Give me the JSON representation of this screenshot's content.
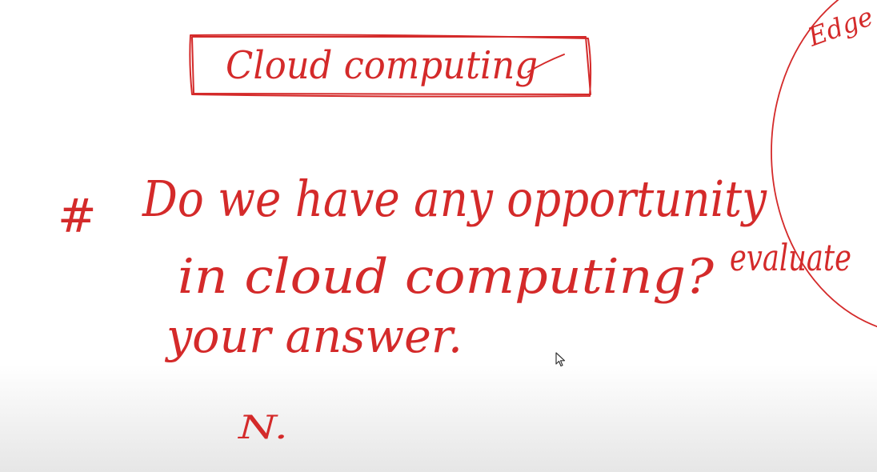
{
  "whiteboard": {
    "title": "Cloud computing",
    "question_line1": "Do we have any opportunity",
    "question_line2_a": "in cloud computing?",
    "question_line2_b": "evaluate",
    "question_line3": "your answer.",
    "bullet_mark": "#",
    "edge_note": "Edge",
    "answer_start": "N.",
    "ink_color": "#d42a2a",
    "background_color": "#ffffff"
  },
  "cursor": {
    "icon": "mouse-pointer-icon"
  }
}
